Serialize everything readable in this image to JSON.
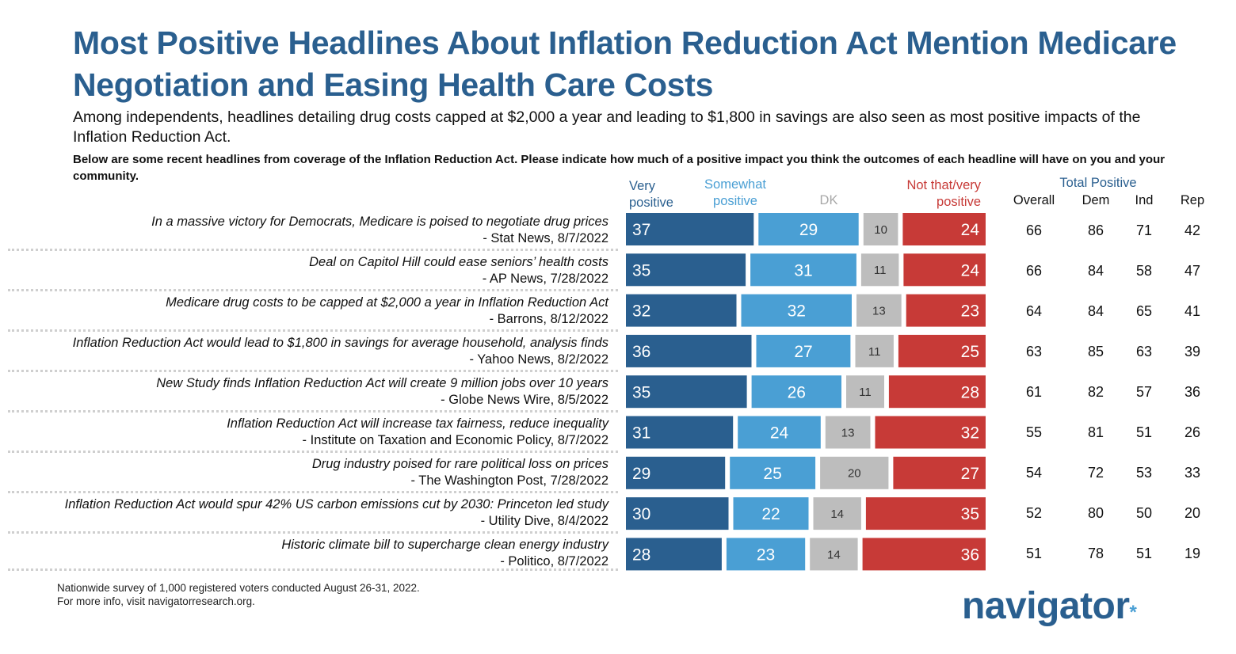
{
  "title": "Most Positive Headlines About Inflation Reduction Act Mention Medicare Negotiation and Easing Health Care Costs",
  "subtitle": "Among independents, headlines detailing drug costs capped at $2,000 a year and leading to $1,800 in savings are also seen as most positive impacts of the Inflation Reduction Act.",
  "question": "Below are some recent headlines from coverage of the Inflation Reduction Act. Please indicate how much of a positive impact you think the outcomes of each headline will have on you and your community.",
  "headers": {
    "very_positive": [
      "Very",
      "positive"
    ],
    "somewhat_positive": [
      "Somewhat",
      "positive"
    ],
    "dk": "DK",
    "not_positive": [
      "Not that/very",
      "positive"
    ],
    "total_positive": "Total Positive",
    "overall": "Overall",
    "dem": "Dem",
    "ind": "Ind",
    "rep": "Rep"
  },
  "colors": {
    "very_positive": "#2a5f8f",
    "somewhat_positive": "#4a9fd4",
    "dk": "#bdbdbd",
    "not_positive": "#c73a37",
    "title": "#2a5f8f"
  },
  "rows": [
    {
      "headline": "In a massive victory for Democrats, Medicare is poised to negotiate drug prices",
      "source": "- Stat News, 8/7/2022",
      "overall": "66",
      "dem": "86",
      "ind": "71",
      "rep": "42"
    },
    {
      "headline": "Deal on Capitol Hill could ease seniors’ health costs",
      "source": "- AP News, 7/28/2022",
      "overall": "66",
      "dem": "84",
      "ind": "58",
      "rep": "47"
    },
    {
      "headline": "Medicare drug costs to be capped at $2,000 a year in Inflation Reduction Act",
      "source": "- Barrons, 8/12/2022",
      "overall": "64",
      "dem": "84",
      "ind": "65",
      "rep": "41"
    },
    {
      "headline": "Inflation Reduction Act would lead to $1,800 in savings for average household, analysis finds",
      "source": "- Yahoo News, 8/2/2022",
      "overall": "63",
      "dem": "85",
      "ind": "63",
      "rep": "39"
    },
    {
      "headline": "New Study finds Inflation Reduction Act will create 9 million jobs over 10 years",
      "source": "- Globe News Wire, 8/5/2022",
      "overall": "61",
      "dem": "82",
      "ind": "57",
      "rep": "36"
    },
    {
      "headline": "Inflation Reduction Act will increase tax fairness, reduce inequality",
      "source": "- Institute on Taxation and Economic Policy, 8/7/2022",
      "overall": "55",
      "dem": "81",
      "ind": "51",
      "rep": "26"
    },
    {
      "headline": "Drug industry poised for rare political loss on prices",
      "source": "- The Washington Post, 7/28/2022",
      "overall": "54",
      "dem": "72",
      "ind": "53",
      "rep": "33"
    },
    {
      "headline": "Inflation Reduction Act would spur 42% US carbon emissions cut by 2030: Princeton led study",
      "source": "- Utility Dive, 8/4/2022",
      "overall": "52",
      "dem": "80",
      "ind": "50",
      "rep": "20"
    },
    {
      "headline": "Historic climate bill to supercharge clean energy industry",
      "source": "- Politico, 8/7/2022",
      "overall": "51",
      "dem": "78",
      "ind": "51",
      "rep": "19"
    }
  ],
  "chart_data": {
    "type": "bar",
    "stacked": true,
    "orientation": "horizontal",
    "categories": [
      "In a massive victory for Democrats, Medicare is poised to negotiate drug prices",
      "Deal on Capitol Hill could ease seniors’ health costs",
      "Medicare drug costs to be capped at $2,000 a year in Inflation Reduction Act",
      "Inflation Reduction Act would lead to $1,800 in savings for average household, analysis finds",
      "New Study finds Inflation Reduction Act will create 9 million jobs over 10 years",
      "Inflation Reduction Act will increase tax fairness, reduce inequality",
      "Drug industry poised for rare political loss on prices",
      "Inflation Reduction Act would spur 42% US carbon emissions cut by 2030: Princeton led study",
      "Historic climate bill to supercharge clean energy industry"
    ],
    "series": [
      {
        "name": "Very positive",
        "values": [
          37,
          35,
          32,
          36,
          35,
          31,
          29,
          30,
          28
        ]
      },
      {
        "name": "Somewhat positive",
        "values": [
          29,
          31,
          32,
          27,
          26,
          24,
          25,
          22,
          23
        ]
      },
      {
        "name": "DK",
        "values": [
          10,
          11,
          13,
          11,
          11,
          13,
          20,
          14,
          14
        ]
      },
      {
        "name": "Not that/very positive",
        "values": [
          24,
          24,
          23,
          25,
          28,
          32,
          27,
          35,
          36
        ]
      }
    ],
    "legend": "top"
  },
  "footnote": [
    "Nationwide survey of 1,000 registered voters conducted August 26-31, 2022.",
    "For more info, visit navigatorresearch.org."
  ],
  "logo": "navigator",
  "logo_dot": "*"
}
